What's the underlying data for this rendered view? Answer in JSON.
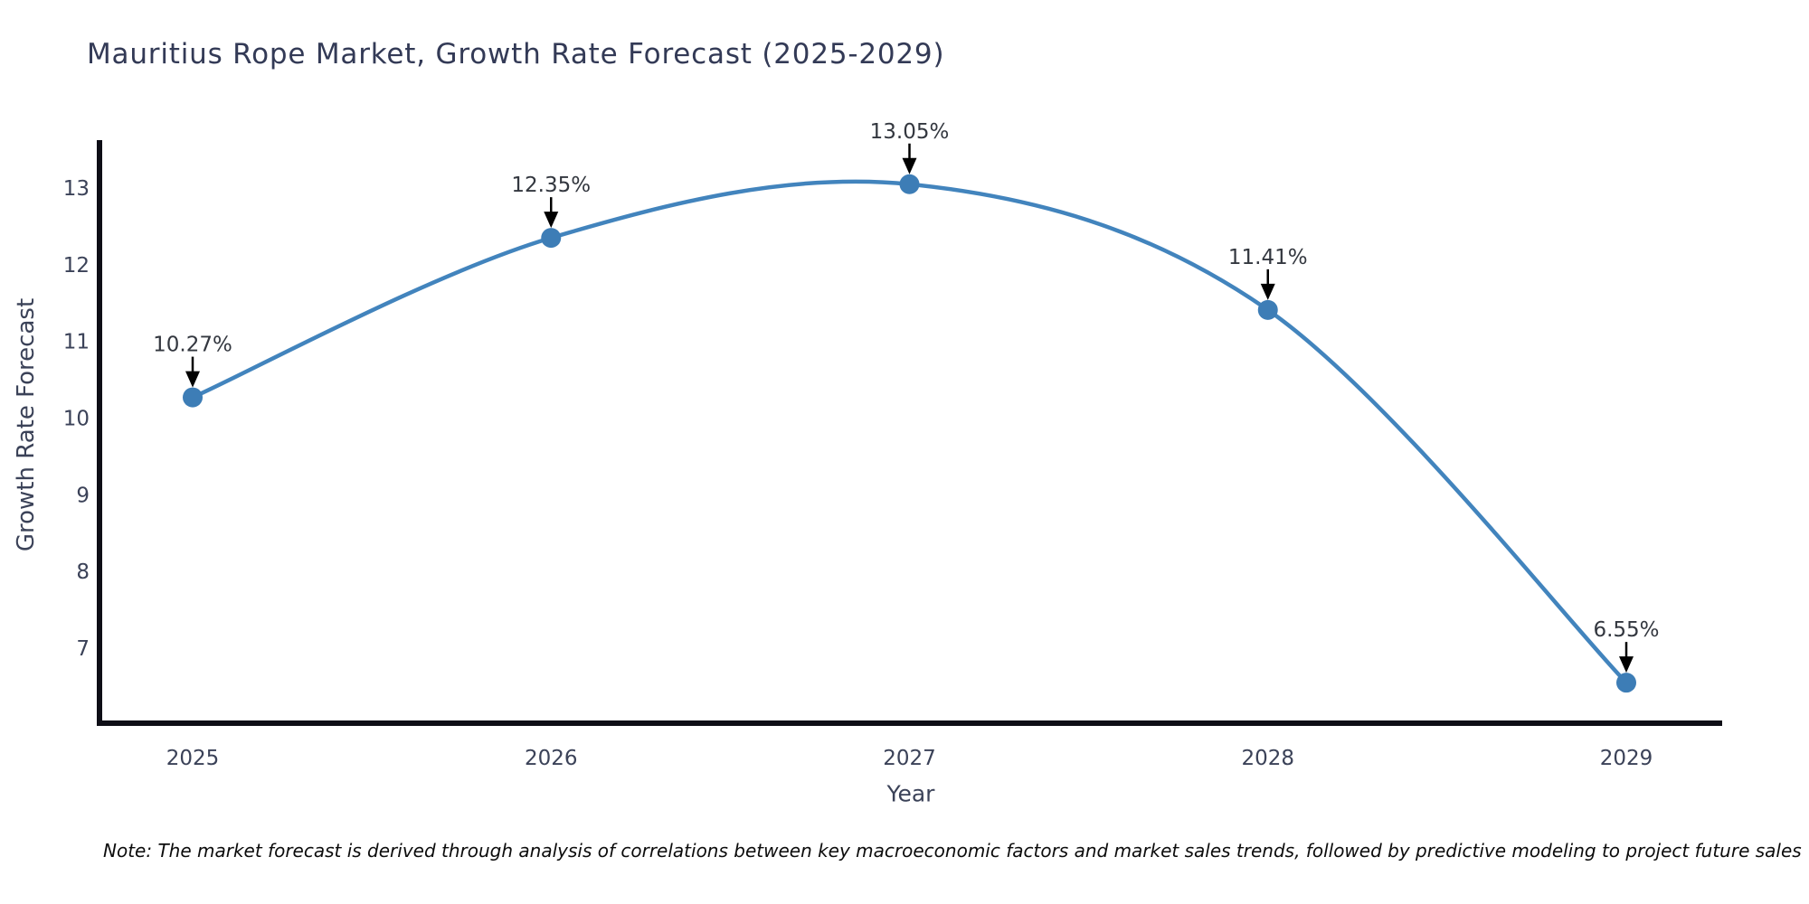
{
  "title": "Mauritius Rope Market, Growth Rate Forecast (2025-2029)",
  "note": "Note: The market forecast is derived through analysis of correlations between key macroeconomic factors and market sales trends, followed by predictive modeling to project future sales",
  "chart_data": {
    "type": "line",
    "line_shape": "spline",
    "title": "Mauritius Rope Market, Growth Rate Forecast (2025-2029)",
    "xlabel": "Year",
    "ylabel": "Growth Rate Forecast",
    "x": [
      "2025",
      "2026",
      "2027",
      "2028",
      "2029"
    ],
    "values": [
      10.27,
      12.35,
      13.05,
      11.41,
      6.55
    ],
    "point_labels": [
      "10.27%",
      "12.35%",
      "13.05%",
      "11.41%",
      "6.55%"
    ],
    "yticks": [
      7,
      8,
      9,
      10,
      11,
      12,
      13
    ],
    "ylim": [
      6.0,
      13.6
    ],
    "xlim": [
      2024.74,
      2029.27
    ],
    "grid": false,
    "legend": false,
    "markers": true,
    "annotations_arrow": true,
    "colors": {
      "line": "#4284bd",
      "marker": "#3d7db6",
      "axis": "#0e0e16",
      "tick_text": "#3b4258",
      "annotation_text": "#33373f",
      "annotation_arrow": "#000000",
      "title_text": "#333a56",
      "background": "#ffffff"
    }
  }
}
